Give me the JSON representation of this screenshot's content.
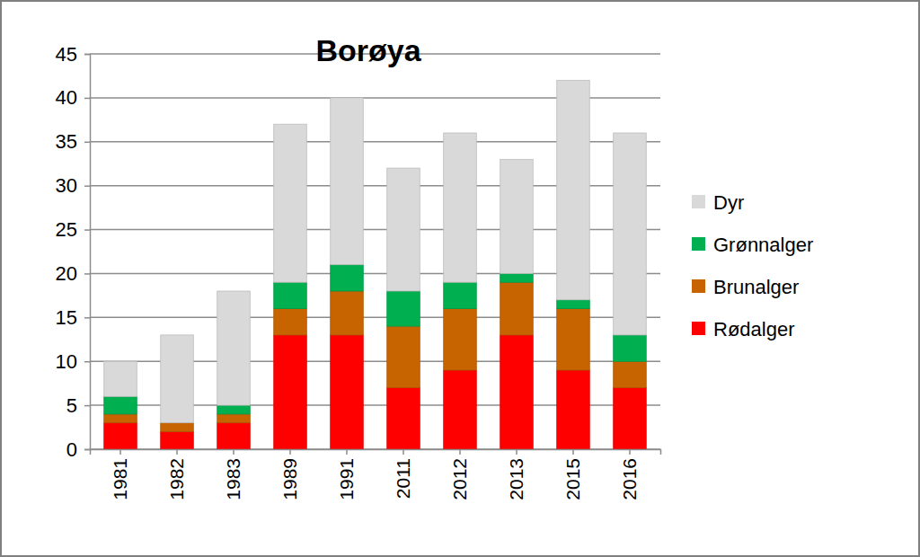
{
  "chart_data": {
    "type": "bar",
    "title": "Borøya",
    "stacked": true,
    "grid": true,
    "legend": "right",
    "categories": [
      "1981",
      "1982",
      "1983",
      "1989",
      "1991",
      "2011",
      "2012",
      "2013",
      "2015",
      "2016"
    ],
    "series": [
      {
        "name": "Rødalger",
        "color": "#ff0000",
        "values": [
          3,
          2,
          3,
          13,
          13,
          7,
          9,
          13,
          9,
          7
        ]
      },
      {
        "name": "Brunalger",
        "color": "#c86400",
        "values": [
          1,
          1,
          1,
          3,
          5,
          7,
          7,
          6,
          7,
          3
        ]
      },
      {
        "name": "Grønnalger",
        "color": "#00b050",
        "values": [
          2,
          0,
          1,
          3,
          3,
          4,
          3,
          1,
          1,
          3
        ]
      },
      {
        "name": "Dyr",
        "color": "#d9d9d9",
        "values": [
          4,
          10,
          13,
          18,
          19,
          14,
          17,
          13,
          25,
          23
        ]
      }
    ],
    "ylim": [
      0,
      45
    ],
    "yticks": [
      0,
      5,
      10,
      15,
      20,
      25,
      30,
      35,
      40,
      45
    ]
  }
}
